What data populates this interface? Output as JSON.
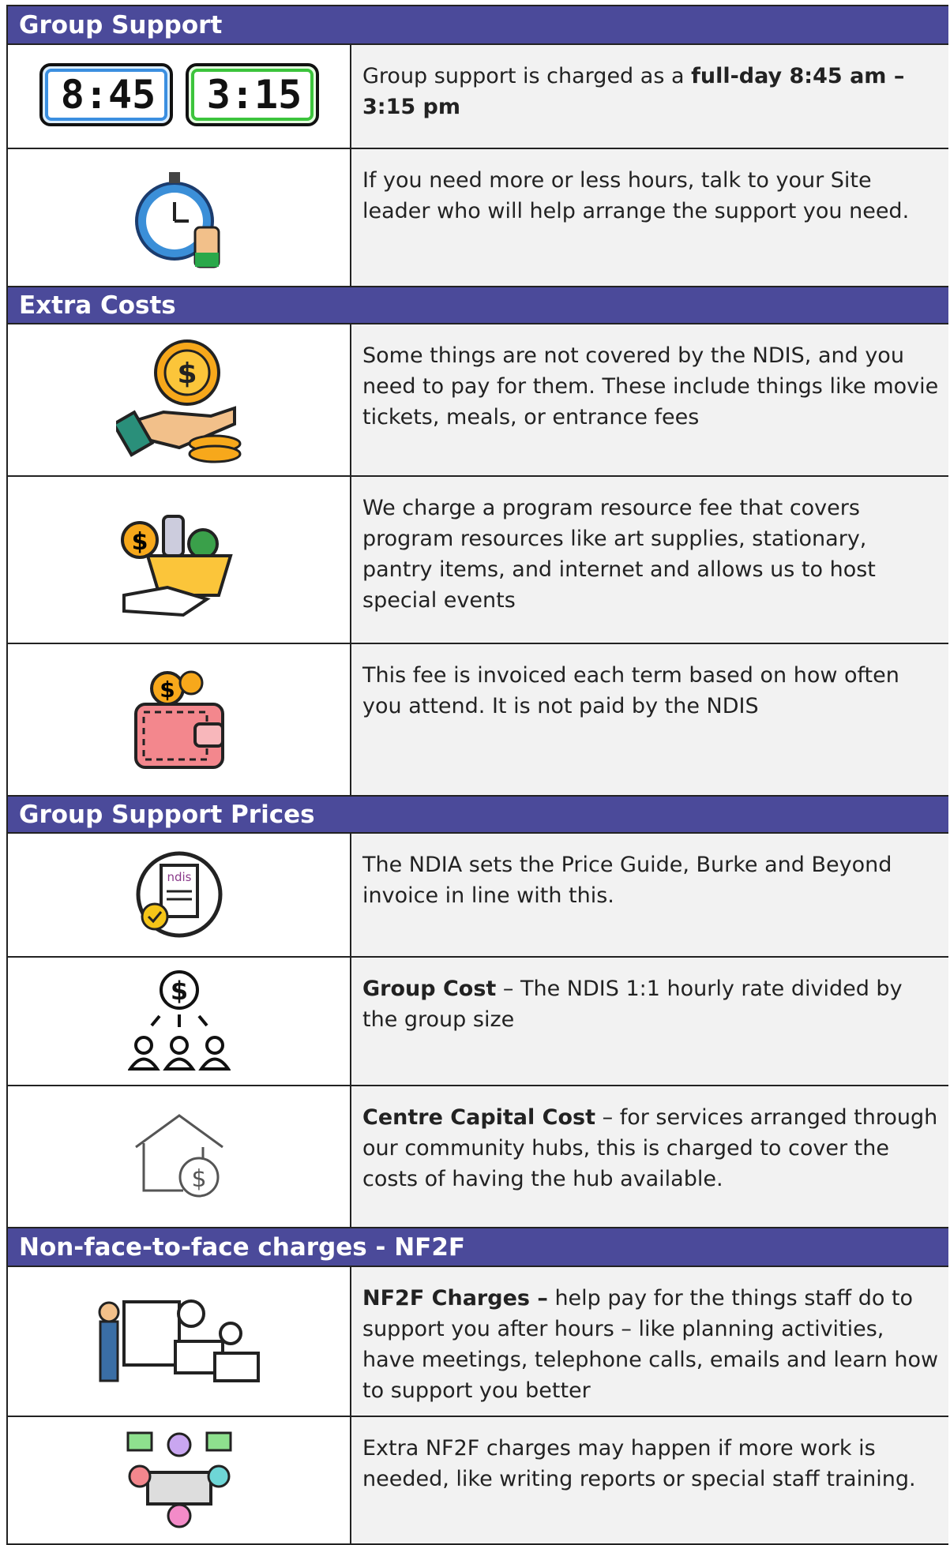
{
  "sections": [
    {
      "title": "Group Support",
      "rows": [
        {
          "icon_text": [
            "8:45",
            "3:15"
          ],
          "parts": [
            {
              "text": "Group support is charged as a "
            },
            {
              "text": "full-day 8:45 am – 3:15 pm",
              "bold": true
            }
          ]
        },
        {
          "parts": [
            {
              "text": "If you need more or less hours, talk to your Site leader who will help arrange the support you need."
            }
          ]
        }
      ]
    },
    {
      "title": "Extra Costs",
      "rows": [
        {
          "parts": [
            {
              "text": "Some things are not covered by the NDIS, and you need to pay for them. These include things like movie tickets, meals, or entrance fees"
            }
          ]
        },
        {
          "parts": [
            {
              "text": "We charge a program resource fee that covers program resources like art supplies, stationary, pantry items, and internet and allows us to host special events"
            }
          ]
        },
        {
          "parts": [
            {
              "text": "This fee is invoiced each term based on how often you attend. It is not paid by the NDIS"
            }
          ]
        }
      ]
    },
    {
      "title": "Group Support Prices",
      "rows": [
        {
          "icon_text": [
            "ndis"
          ],
          "parts": [
            {
              "text": "The NDIA sets the Price Guide, Burke and Beyond invoice in line with this."
            }
          ]
        },
        {
          "parts": [
            {
              "text": "Group Cost",
              "bold": true
            },
            {
              "text": " – The NDIS 1:1 hourly rate divided by the group size"
            }
          ]
        },
        {
          "parts": [
            {
              "text": "Centre Capital Cost",
              "bold": true
            },
            {
              "text": " – for services arranged through our community hubs, this is charged to cover the costs of having the hub available."
            }
          ]
        }
      ]
    },
    {
      "title": "Non-face-to-face charges - NF2F",
      "rows": [
        {
          "parts": [
            {
              "text": "NF2F Charges –",
              "bold": true
            },
            {
              "text": " help pay for the things staff do to support you after hours – like planning activities, have meetings, telephone calls, emails and learn how to support you better"
            }
          ]
        },
        {
          "parts": [
            {
              "text": "Extra NF2F charges may happen if more work is needed, like writing reports or special staff training."
            }
          ]
        }
      ]
    }
  ]
}
